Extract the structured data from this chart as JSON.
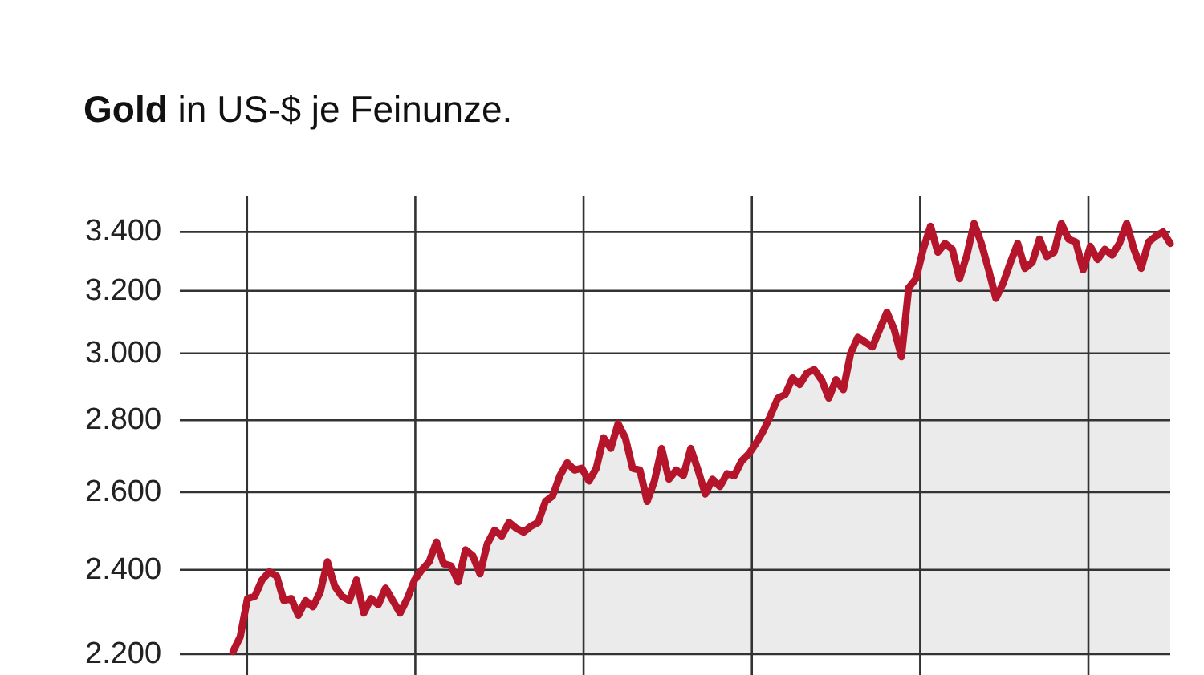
{
  "chart_data": {
    "type": "area",
    "title": "Gold in US-$ je Feinunze.",
    "categories": [
      null,
      null,
      null,
      null,
      null,
      null,
      null,
      null,
      null,
      null,
      null,
      null,
      null,
      null,
      null,
      null,
      null,
      null,
      null,
      null,
      null,
      null,
      null,
      null,
      null,
      null,
      null,
      null,
      null,
      null,
      null,
      null,
      null,
      null,
      null,
      null,
      null,
      null,
      null,
      null,
      null,
      null,
      null,
      null,
      null,
      null,
      null,
      null,
      null,
      null,
      null,
      null,
      null,
      null,
      null,
      null,
      null,
      null,
      null,
      null,
      null,
      null,
      null,
      null,
      null,
      null,
      null,
      null,
      null,
      null,
      null,
      null,
      null,
      null,
      null,
      null,
      null,
      null,
      null,
      null,
      null,
      null,
      null,
      null,
      null,
      null,
      null,
      null,
      null,
      null,
      null,
      null,
      null,
      null,
      null,
      null,
      null,
      null,
      null,
      null,
      null,
      null,
      null,
      null,
      null,
      null,
      null,
      null,
      null,
      null,
      null,
      null,
      null,
      null,
      null,
      null,
      null,
      null,
      null,
      null,
      null,
      null,
      null,
      null,
      null,
      null,
      null,
      null,
      null,
      null
    ],
    "series": [
      {
        "color": "#b5152b",
        "values": [
          2206,
          2240,
          2330,
          2335,
          2375,
          2395,
          2385,
          2325,
          2330,
          2290,
          2325,
          2310,
          2345,
          2420,
          2360,
          2335,
          2325,
          2375,
          2295,
          2330,
          2315,
          2355,
          2325,
          2295,
          2330,
          2375,
          2400,
          2420,
          2470,
          2415,
          2410,
          2370,
          2450,
          2435,
          2390,
          2465,
          2500,
          2485,
          2520,
          2505,
          2495,
          2510,
          2520,
          2575,
          2590,
          2645,
          2680,
          2660,
          2665,
          2630,
          2665,
          2750,
          2720,
          2790,
          2750,
          2665,
          2660,
          2575,
          2630,
          2720,
          2635,
          2660,
          2645,
          2720,
          2660,
          2595,
          2635,
          2615,
          2650,
          2645,
          2685,
          2705,
          2735,
          2770,
          2815,
          2865,
          2875,
          2925,
          2905,
          2940,
          2950,
          2920,
          2865,
          2920,
          2890,
          3000,
          3050,
          3035,
          3020,
          3075,
          3130,
          3075,
          2990,
          3210,
          3240,
          3340,
          3420,
          3330,
          3360,
          3340,
          3240,
          3320,
          3430,
          3360,
          3270,
          3175,
          3225,
          3295,
          3360,
          3275,
          3295,
          3375,
          3315,
          3330,
          3430,
          3375,
          3365,
          3270,
          3350,
          3305,
          3340,
          3320,
          3360,
          3430,
          3340,
          3275,
          3365,
          3385,
          3400,
          3360
        ]
      }
    ],
    "ylim": [
      2200,
      3530
    ],
    "yticks": [
      {
        "value": 2200,
        "label": "2.200"
      },
      {
        "value": 2400,
        "label": "2.400"
      },
      {
        "value": 2600,
        "label": "2.600"
      },
      {
        "value": 2800,
        "label": "2.800"
      },
      {
        "value": 3000,
        "label": "3.000"
      },
      {
        "value": 3200,
        "label": "3.200"
      },
      {
        "value": 3400,
        "label": "3.400"
      }
    ],
    "log": true,
    "grid": true
  }
}
